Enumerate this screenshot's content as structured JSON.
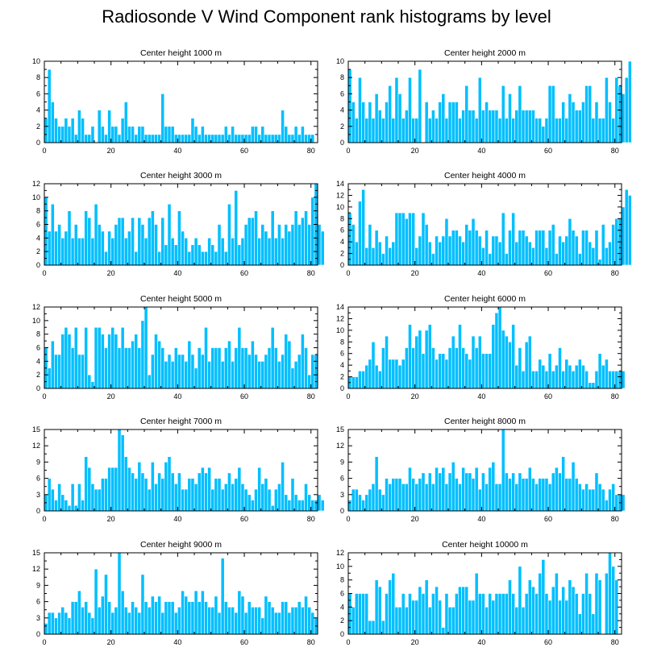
{
  "page": {
    "title": "Radiosonde V Wind Component rank histograms by level"
  },
  "chart_data": [
    {
      "type": "bar",
      "title": "Center height 1000 m",
      "xticks": [
        0,
        20,
        40,
        60,
        80
      ],
      "yticks": [
        0,
        2,
        4,
        6,
        8,
        10
      ],
      "xlim": [
        0,
        82
      ],
      "ylim": [
        0,
        10
      ],
      "values": [
        3,
        9,
        5,
        3,
        2,
        2,
        3,
        2,
        3,
        1,
        4,
        3,
        1,
        1,
        2,
        0,
        4,
        2,
        1,
        4,
        2,
        2,
        1,
        3,
        5,
        2,
        2,
        1,
        2,
        2,
        1,
        1,
        1,
        1,
        1,
        6,
        2,
        2,
        2,
        1,
        1,
        1,
        1,
        1,
        3,
        2,
        1,
        2,
        1,
        1,
        1,
        1,
        1,
        1,
        2,
        1,
        2,
        1,
        1,
        1,
        1,
        1,
        2,
        2,
        1,
        2,
        1,
        1,
        1,
        1,
        1,
        4,
        2,
        1,
        1,
        2,
        1,
        2,
        1,
        1,
        1
      ]
    },
    {
      "type": "bar",
      "title": "Center height 2000 m",
      "xticks": [
        0,
        20,
        40,
        60,
        80
      ],
      "yticks": [
        0,
        2,
        4,
        6,
        8,
        10
      ],
      "xlim": [
        0,
        82
      ],
      "ylim": [
        0,
        10
      ],
      "values": [
        9,
        5,
        3,
        8,
        5,
        3,
        5,
        3,
        6,
        4,
        3,
        5,
        7,
        3,
        8,
        6,
        3,
        4,
        8,
        3,
        3,
        9,
        0,
        5,
        3,
        4,
        3,
        5,
        6,
        3,
        5,
        5,
        5,
        3,
        4,
        7,
        4,
        4,
        3,
        8,
        4,
        5,
        4,
        4,
        4,
        3,
        7,
        3,
        6,
        3,
        4,
        7,
        4,
        4,
        4,
        4,
        3,
        3,
        2,
        3,
        7,
        7,
        3,
        3,
        5,
        3,
        6,
        5,
        4,
        4,
        5,
        7,
        7,
        3,
        5,
        3,
        3,
        8,
        5,
        3,
        8,
        7,
        6,
        8,
        10
      ]
    },
    {
      "type": "bar",
      "title": "Center height 3000 m",
      "xticks": [
        0,
        20,
        40,
        60,
        80
      ],
      "yticks": [
        0,
        2,
        4,
        6,
        8,
        10,
        12
      ],
      "xlim": [
        0,
        82
      ],
      "ylim": [
        0,
        12
      ],
      "values": [
        10,
        5,
        9,
        5,
        6,
        4,
        5,
        8,
        4,
        6,
        4,
        4,
        8,
        7,
        4,
        9,
        6,
        5,
        2,
        5,
        4,
        6,
        7,
        7,
        4,
        5,
        7,
        2,
        7,
        6,
        4,
        7,
        8,
        6,
        2,
        7,
        3,
        9,
        4,
        3,
        8,
        5,
        4,
        2,
        3,
        4,
        3,
        2,
        2,
        4,
        3,
        2,
        6,
        4,
        2,
        9,
        4,
        11,
        3,
        4,
        6,
        7,
        7,
        8,
        4,
        6,
        5,
        4,
        8,
        4,
        6,
        4,
        6,
        5,
        6,
        8,
        6,
        7,
        8,
        6,
        10,
        12,
        6,
        5
      ]
    },
    {
      "type": "bar",
      "title": "Center height 4000 m",
      "xticks": [
        0,
        20,
        40,
        60,
        80
      ],
      "yticks": [
        0,
        2,
        4,
        6,
        8,
        10,
        12,
        14
      ],
      "xlim": [
        0,
        82
      ],
      "ylim": [
        0,
        14
      ],
      "values": [
        9,
        7,
        4,
        11,
        13,
        3,
        7,
        3,
        6,
        4,
        2,
        5,
        3,
        4,
        9,
        9,
        9,
        8,
        9,
        9,
        3,
        5,
        9,
        7,
        4,
        2,
        5,
        4,
        5,
        8,
        5,
        6,
        6,
        5,
        4,
        7,
        6,
        8,
        6,
        5,
        3,
        6,
        2,
        5,
        5,
        4,
        9,
        2,
        6,
        9,
        4,
        6,
        6,
        5,
        4,
        3,
        6,
        6,
        6,
        3,
        6,
        7,
        2,
        5,
        4,
        5,
        8,
        6,
        5,
        2,
        6,
        6,
        4,
        3,
        6,
        1,
        7,
        3,
        4,
        7,
        8,
        8,
        10,
        13,
        12
      ]
    },
    {
      "type": "bar",
      "title": "Center height 5000 m",
      "xticks": [
        0,
        20,
        40,
        60,
        80
      ],
      "yticks": [
        0,
        2,
        4,
        6,
        8,
        10,
        12
      ],
      "xlim": [
        0,
        82
      ],
      "ylim": [
        0,
        12
      ],
      "values": [
        6,
        3,
        7,
        5,
        5,
        8,
        9,
        8,
        6,
        9,
        5,
        5,
        9,
        2,
        1,
        9,
        9,
        8,
        6,
        8,
        9,
        8,
        6,
        9,
        6,
        6,
        7,
        8,
        6,
        10,
        12,
        2,
        5,
        8,
        7,
        6,
        4,
        5,
        4,
        6,
        5,
        5,
        4,
        7,
        5,
        3,
        6,
        5,
        9,
        4,
        6,
        6,
        6,
        4,
        6,
        7,
        4,
        6,
        9,
        6,
        6,
        5,
        7,
        5,
        4,
        4,
        5,
        6,
        9,
        6,
        4,
        5,
        8,
        7,
        3,
        4,
        5,
        8,
        6,
        2,
        5,
        5
      ]
    },
    {
      "type": "bar",
      "title": "Center height 6000 m",
      "xticks": [
        0,
        20,
        40,
        60,
        80
      ],
      "yticks": [
        0,
        2,
        4,
        6,
        8,
        10,
        12,
        14
      ],
      "xlim": [
        0,
        82
      ],
      "ylim": [
        0,
        14
      ],
      "values": [
        2,
        2,
        2,
        3,
        3,
        4,
        5,
        8,
        4,
        3,
        7,
        9,
        5,
        5,
        5,
        4,
        5,
        7,
        11,
        7,
        9,
        10,
        6,
        10,
        11,
        7,
        5,
        6,
        6,
        5,
        7,
        9,
        7,
        11,
        7,
        6,
        5,
        9,
        7,
        9,
        6,
        6,
        6,
        11,
        13,
        14,
        10,
        9,
        8,
        11,
        4,
        7,
        3,
        8,
        9,
        3,
        3,
        5,
        4,
        3,
        6,
        3,
        4,
        7,
        3,
        5,
        4,
        3,
        4,
        5,
        4,
        3,
        1,
        1,
        3,
        6,
        4,
        5,
        3,
        3,
        3,
        3,
        3
      ]
    },
    {
      "type": "bar",
      "title": "Center height 7000 m",
      "xticks": [
        0,
        20,
        40,
        60,
        80
      ],
      "yticks": [
        0,
        3,
        6,
        9,
        12,
        15
      ],
      "xlim": [
        0,
        82
      ],
      "ylim": [
        0,
        15
      ],
      "values": [
        3,
        6,
        4,
        2,
        5,
        3,
        2,
        1,
        5,
        1,
        5,
        2,
        10,
        8,
        5,
        4,
        4,
        6,
        6,
        8,
        8,
        8,
        15,
        14,
        10,
        8,
        7,
        6,
        9,
        7,
        6,
        4,
        9,
        5,
        7,
        6,
        9,
        10,
        7,
        5,
        7,
        4,
        4,
        6,
        6,
        5,
        7,
        8,
        7,
        8,
        4,
        6,
        6,
        4,
        5,
        7,
        5,
        6,
        8,
        5,
        4,
        3,
        2,
        4,
        8,
        5,
        6,
        4,
        1,
        4,
        5,
        9,
        3,
        2,
        6,
        3,
        2,
        2,
        5,
        3,
        2,
        2,
        3,
        2
      ]
    },
    {
      "type": "bar",
      "title": "Center height 8000 m",
      "xticks": [
        0,
        20,
        40,
        60,
        80
      ],
      "yticks": [
        0,
        3,
        6,
        9,
        12,
        15
      ],
      "xlim": [
        0,
        82
      ],
      "ylim": [
        0,
        15
      ],
      "values": [
        2,
        4,
        4,
        3,
        2,
        3,
        4,
        5,
        10,
        4,
        3,
        6,
        5,
        6,
        6,
        6,
        5,
        5,
        8,
        6,
        5,
        6,
        7,
        5,
        7,
        5,
        8,
        7,
        8,
        5,
        7,
        9,
        6,
        5,
        8,
        7,
        7,
        6,
        8,
        4,
        7,
        5,
        8,
        9,
        5,
        5,
        15,
        7,
        6,
        7,
        5,
        7,
        6,
        6,
        8,
        6,
        5,
        6,
        6,
        6,
        5,
        7,
        8,
        7,
        10,
        6,
        6,
        9,
        6,
        5,
        4,
        5,
        4,
        4,
        7,
        5,
        4,
        2,
        4,
        5,
        3,
        3,
        3
      ]
    },
    {
      "type": "bar",
      "title": "Center height 9000 m",
      "xticks": [
        0,
        20,
        40,
        60,
        80
      ],
      "yticks": [
        0,
        3,
        6,
        9,
        12,
        15
      ],
      "xlim": [
        0,
        82
      ],
      "ylim": [
        0,
        15
      ],
      "values": [
        2,
        4,
        4,
        3,
        4,
        5,
        4,
        3,
        6,
        6,
        8,
        5,
        6,
        4,
        3,
        12,
        5,
        7,
        11,
        6,
        4,
        5,
        15,
        8,
        5,
        4,
        6,
        5,
        4,
        11,
        6,
        5,
        7,
        6,
        7,
        4,
        6,
        6,
        6,
        4,
        5,
        8,
        7,
        6,
        6,
        8,
        6,
        8,
        6,
        5,
        5,
        7,
        4,
        14,
        6,
        5,
        5,
        4,
        8,
        7,
        4,
        6,
        5,
        5,
        5,
        3,
        7,
        6,
        5,
        4,
        4,
        6,
        6,
        4,
        5,
        5,
        6,
        5,
        7,
        5,
        4,
        3
      ]
    },
    {
      "type": "bar",
      "title": "Center height 10000 m",
      "xticks": [
        0,
        20,
        40,
        60,
        80
      ],
      "yticks": [
        0,
        2,
        4,
        6,
        8,
        10,
        12
      ],
      "xlim": [
        0,
        82
      ],
      "ylim": [
        0,
        12
      ],
      "values": [
        6,
        4,
        6,
        6,
        6,
        6,
        2,
        2,
        8,
        7,
        2,
        6,
        8,
        9,
        4,
        4,
        6,
        4,
        6,
        5,
        5,
        7,
        6,
        8,
        4,
        6,
        7,
        5,
        1,
        6,
        4,
        4,
        6,
        7,
        7,
        7,
        5,
        5,
        9,
        6,
        6,
        4,
        6,
        5,
        6,
        6,
        6,
        6,
        8,
        6,
        4,
        10,
        4,
        6,
        8,
        7,
        6,
        9,
        11,
        6,
        5,
        7,
        9,
        5,
        7,
        5,
        8,
        7,
        6,
        3,
        6,
        9,
        6,
        3,
        9,
        8,
        0,
        9,
        12,
        10,
        8
      ]
    }
  ]
}
